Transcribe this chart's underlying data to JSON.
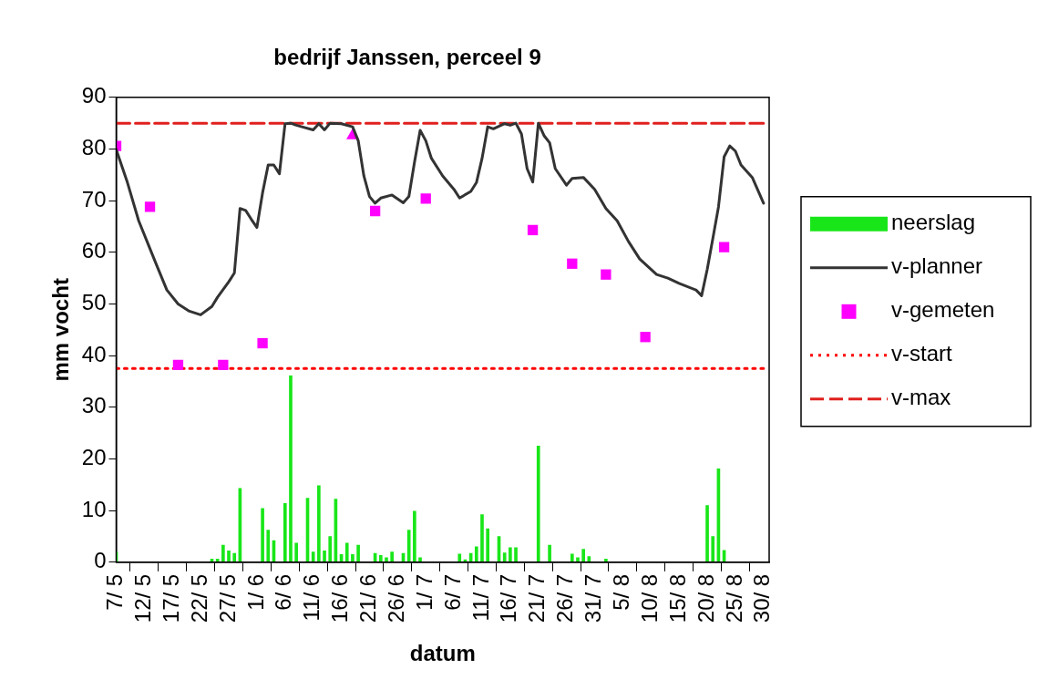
{
  "chart_data": {
    "type": "bar",
    "title": "bedrijf Janssen, perceel 9",
    "xlabel": "datum",
    "ylabel": "mm vocht",
    "xlim": [
      "--05-07",
      "--08-31"
    ],
    "xticks": [
      {
        "value": "--05-07",
        "label": "7/ 5"
      },
      {
        "value": "--05-12",
        "label": "12/ 5"
      },
      {
        "value": "--05-17",
        "label": "17/ 5"
      },
      {
        "value": "--05-22",
        "label": "22/ 5"
      },
      {
        "value": "--05-27",
        "label": "27/ 5"
      },
      {
        "value": "--06-01",
        "label": "1/ 6"
      },
      {
        "value": "--06-06",
        "label": "6/ 6"
      },
      {
        "value": "--06-11",
        "label": "11/ 6"
      },
      {
        "value": "--06-16",
        "label": "16/ 6"
      },
      {
        "value": "--06-21",
        "label": "21/ 6"
      },
      {
        "value": "--06-26",
        "label": "26/ 6"
      },
      {
        "value": "--07-01",
        "label": "1/ 7"
      },
      {
        "value": "--07-06",
        "label": "6/ 7"
      },
      {
        "value": "--07-11",
        "label": "11/ 7"
      },
      {
        "value": "--07-16",
        "label": "16/ 7"
      },
      {
        "value": "--07-21",
        "label": "21/ 7"
      },
      {
        "value": "--07-26",
        "label": "26/ 7"
      },
      {
        "value": "--07-31",
        "label": "31/ 7"
      },
      {
        "value": "--08-05",
        "label": "5/ 8"
      },
      {
        "value": "--08-10",
        "label": "10/ 8"
      },
      {
        "value": "--08-15",
        "label": "15/ 8"
      },
      {
        "value": "--08-20",
        "label": "20/ 8"
      },
      {
        "value": "--08-25",
        "label": "25/ 8"
      },
      {
        "value": "--08-30",
        "label": "30/ 8"
      }
    ],
    "ylim": [
      0,
      90
    ],
    "yticks": [
      0,
      10,
      20,
      30,
      40,
      50,
      60,
      70,
      80,
      90
    ],
    "grid": false,
    "legend": "right",
    "series": [
      {
        "name": "neerslag",
        "color": "#19e619",
        "x": [
          "--05-07",
          "--05-24",
          "--05-25",
          "--05-26",
          "--05-27",
          "--05-28",
          "--05-29",
          "--06-02",
          "--06-03",
          "--06-04",
          "--06-06",
          "--06-07",
          "--06-08",
          "--06-10",
          "--06-11",
          "--06-12",
          "--06-13",
          "--06-14",
          "--06-15",
          "--06-16",
          "--06-17",
          "--06-18",
          "--06-19",
          "--06-22",
          "--06-23",
          "--06-24",
          "--06-25",
          "--06-27",
          "--06-28",
          "--06-29",
          "--06-30",
          "--07-07",
          "--07-08",
          "--07-09",
          "--07-10",
          "--07-11",
          "--07-12",
          "--07-14",
          "--07-15",
          "--07-16",
          "--07-17",
          "--07-21",
          "--07-23",
          "--07-27",
          "--07-28",
          "--07-29",
          "--07-30",
          "--08-02",
          "--08-20",
          "--08-21",
          "--08-22",
          "--08-23"
        ],
        "values": [
          2,
          0.6,
          0.6,
          3.3,
          2.2,
          1.7,
          14.3,
          10.4,
          6.2,
          4.2,
          11.4,
          36.1,
          3.7,
          12.4,
          2,
          14.8,
          2.2,
          5,
          12.2,
          1.5,
          3.7,
          1.5,
          3.3,
          1.7,
          1.3,
          0.9,
          2,
          1.7,
          6.2,
          9.9,
          0.9,
          1.6,
          0.5,
          1.7,
          3,
          9.2,
          6.5,
          5,
          1.8,
          2.8,
          2.8,
          22.5,
          3.3,
          1.6,
          0.9,
          2.5,
          1.1,
          0.6,
          11,
          5,
          18.1,
          2.3
        ]
      },
      {
        "name": "v-planner",
        "type": "line",
        "color": "#333333",
        "marker": "none",
        "line_style": "solid",
        "x": [
          "--05-07",
          "--05-09",
          "--05-11",
          "--05-14",
          "--05-16",
          "--05-18",
          "--05-20",
          "--05-22",
          "--05-24",
          "--05-25",
          "--05-27",
          "--05-28",
          "--05-29",
          "--05-30",
          "--05-31",
          "--06-01",
          "--06-02",
          "--06-03",
          "--06-04",
          "--06-05",
          "--06-06",
          "--06-07",
          "--06-08",
          "--06-09",
          "--06-11",
          "--06-12",
          "--06-13",
          "--06-14",
          "--06-16",
          "--06-18",
          "--06-19",
          "--06-20",
          "--06-21",
          "--06-22",
          "--06-23",
          "--06-25",
          "--06-27",
          "--06-28",
          "--06-29",
          "--06-30",
          "--07-01",
          "--07-02",
          "--07-04",
          "--07-06",
          "--07-07",
          "--07-09",
          "--07-10",
          "--07-11",
          "--07-12",
          "--07-13",
          "--07-15",
          "--07-16",
          "--07-17",
          "--07-18",
          "--07-19",
          "--07-20",
          "--07-21",
          "--07-22",
          "--07-23",
          "--07-24",
          "--07-26",
          "--07-27",
          "--07-29",
          "--07-31",
          "--08-02",
          "--08-04",
          "--08-06",
          "--08-08",
          "--08-11",
          "--08-13",
          "--08-15",
          "--08-18",
          "--08-19",
          "--08-20",
          "--08-21",
          "--08-22",
          "--08-23",
          "--08-24",
          "--08-25",
          "--08-26",
          "--08-28",
          "--08-30"
        ],
        "values": [
          79.9,
          73.5,
          66.1,
          58,
          52.7,
          50,
          48.6,
          47.9,
          49.5,
          51.3,
          54.3,
          56,
          68.5,
          68.1,
          66.4,
          64.8,
          71.5,
          76.9,
          76.9,
          75.2,
          84.9,
          85,
          84.6,
          84.3,
          83.7,
          84.9,
          83.7,
          85,
          84.9,
          84.3,
          81.6,
          74.8,
          70.8,
          69.5,
          70.5,
          71.1,
          69.6,
          70.8,
          77.5,
          83.6,
          81.6,
          78.2,
          74.8,
          72.2,
          70.5,
          71.8,
          73.5,
          78.2,
          84.3,
          83.9,
          84.9,
          84.6,
          85,
          82.9,
          76.2,
          73.6,
          85,
          82.6,
          81.2,
          76.2,
          73,
          74.3,
          74.5,
          72.2,
          68.5,
          66.1,
          62.1,
          58.7,
          55.7,
          55,
          54,
          52.7,
          51.6,
          56.7,
          62.7,
          68.8,
          78.5,
          80.6,
          79.6,
          76.9,
          74.5,
          69.5
        ]
      },
      {
        "name": "v-gemeten",
        "type": "scatter",
        "color": "#ff00ff",
        "marker": "square",
        "x": [
          "--05-07",
          "--05-13",
          "--05-18",
          "--05-26",
          "--06-02",
          "--06-22",
          "--07-01",
          "--07-20",
          "--07-27",
          "--08-02",
          "--08-09",
          "--08-23"
        ],
        "values": [
          80.6,
          68.8,
          38.2,
          38.2,
          42.4,
          68,
          70.4,
          64.3,
          57.8,
          55.7,
          43.6,
          61
        ]
      },
      {
        "type": "scatter",
        "color": "#ff00ff",
        "marker": "triangle",
        "x": [
          "--06-18"
        ],
        "values": [
          82.6
        ]
      },
      {
        "name": "v-start",
        "type": "line",
        "color": "#ff0000",
        "marker": "none",
        "line_style": "dotted",
        "x": [
          "--05-07",
          "--08-30"
        ],
        "values": [
          37.5,
          37.5
        ]
      },
      {
        "name": "v-max",
        "type": "line",
        "color": "#e0201e",
        "marker": "none",
        "line_style": "dashed",
        "x": [
          "--05-07",
          "--08-30"
        ],
        "values": [
          85,
          85
        ]
      }
    ]
  }
}
